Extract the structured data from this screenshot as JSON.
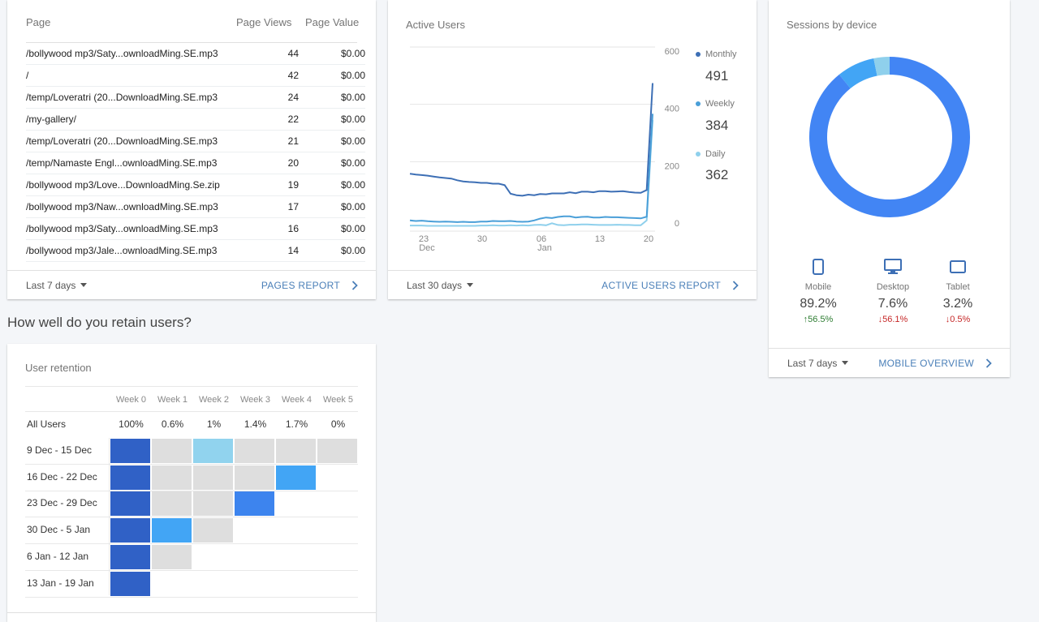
{
  "pages_card": {
    "col_page": "Page",
    "col_views": "Page Views",
    "col_value": "Page Value",
    "rows": [
      {
        "page": "/bollywood mp3/Saty...ownloadMing.SE.mp3",
        "views": "44",
        "value": "$0.00"
      },
      {
        "page": "/",
        "views": "42",
        "value": "$0.00"
      },
      {
        "page": "/temp/Loveratri (20...DownloadMing.SE.mp3",
        "views": "24",
        "value": "$0.00"
      },
      {
        "page": "/my-gallery/",
        "views": "22",
        "value": "$0.00"
      },
      {
        "page": "/temp/Loveratri (20...DownloadMing.SE.mp3",
        "views": "21",
        "value": "$0.00"
      },
      {
        "page": "/temp/Namaste Engl...ownloadMing.SE.mp3",
        "views": "20",
        "value": "$0.00"
      },
      {
        "page": "/bollywood mp3/Love...DownloadMing.Se.zip",
        "views": "19",
        "value": "$0.00"
      },
      {
        "page": "/bollywood mp3/Naw...ownloadMing.SE.mp3",
        "views": "17",
        "value": "$0.00"
      },
      {
        "page": "/bollywood mp3/Saty...ownloadMing.SE.mp3",
        "views": "16",
        "value": "$0.00"
      },
      {
        "page": "/bollywood mp3/Jale...ownloadMing.SE.mp3",
        "views": "14",
        "value": "$0.00"
      }
    ],
    "range": "Last 7 days",
    "link": "PAGES REPORT"
  },
  "active_users_card": {
    "title": "Active Users",
    "range": "Last 30 days",
    "link": "ACTIVE USERS REPORT",
    "legend": [
      {
        "name": "Monthly",
        "value": "491",
        "color": "#3d6fb5"
      },
      {
        "name": "Weekly",
        "value": "384",
        "color": "#4a9fd8"
      },
      {
        "name": "Daily",
        "value": "362",
        "color": "#8fd0ec"
      }
    ]
  },
  "chart_data": {
    "type": "line",
    "title": "Active Users",
    "ylim": [
      0,
      600
    ],
    "yticks": [
      "0",
      "200",
      "400",
      "600"
    ],
    "xtick_labels": [
      {
        "day": "23",
        "month": "Dec"
      },
      {
        "day": "30",
        "month": ""
      },
      {
        "day": "06",
        "month": "Jan"
      },
      {
        "day": "13",
        "month": ""
      },
      {
        "day": "20",
        "month": ""
      }
    ],
    "grid": true,
    "series": [
      {
        "name": "Monthly",
        "color": "#3d6fb5",
        "values": [
          175,
          172,
          170,
          168,
          165,
          162,
          160,
          158,
          152,
          148,
          146,
          145,
          143,
          143,
          140,
          140,
          135,
          105,
          100,
          98,
          102,
          100,
          104,
          103,
          106,
          106,
          106,
          110,
          107,
          112,
          112,
          110,
          114,
          114,
          112,
          113,
          114,
          111,
          109,
          108,
          118,
          491
        ]
      },
      {
        "name": "Weekly",
        "color": "#4a9fd8",
        "values": [
          12,
          10,
          11,
          9,
          8,
          7,
          8,
          7,
          6,
          7,
          6,
          6,
          8,
          8,
          10,
          9,
          9,
          10,
          8,
          7,
          8,
          12,
          18,
          22,
          20,
          24,
          26,
          26,
          22,
          24,
          25,
          22,
          22,
          24,
          23,
          23,
          22,
          21,
          20,
          19,
          25,
          384
        ]
      },
      {
        "name": "Daily",
        "color": "#8fd0ec",
        "values": [
          -6,
          -6,
          -6,
          -7,
          -7,
          -7,
          -7,
          -7,
          -7,
          -7,
          -7,
          -7,
          -6,
          -6,
          -5,
          -6,
          -6,
          -5,
          -6,
          -5,
          -6,
          -4,
          -3,
          -5,
          2,
          -4,
          -5,
          -3,
          -3,
          -2,
          -2,
          -3,
          -4,
          -4,
          -4,
          -3,
          -4,
          -4,
          -5,
          -5,
          12,
          362
        ]
      }
    ]
  },
  "device_card": {
    "title": "Sessions by device",
    "range": "Last 7 days",
    "link": "MOBILE OVERVIEW",
    "devices": [
      {
        "name": "Mobile",
        "value": "89.2%",
        "change": "56.5%",
        "direction": "up",
        "color": "#4285f4"
      },
      {
        "name": "Desktop",
        "value": "7.6%",
        "change": "56.1%",
        "direction": "down",
        "color": "#42a5f5"
      },
      {
        "name": "Tablet",
        "value": "3.2%",
        "change": "0.5%",
        "direction": "down",
        "color": "#8fd0ec"
      }
    ],
    "donut_values": [
      89.2,
      7.6,
      3.2
    ]
  },
  "retention": {
    "heading": "How well do you retain users?",
    "title": "User retention",
    "weeks": [
      "Week 0",
      "Week 1",
      "Week 2",
      "Week 3",
      "Week 4",
      "Week 5"
    ],
    "all_users_label": "All Users",
    "all_users_values": [
      "100%",
      "0.6%",
      "1%",
      "1.4%",
      "1.7%",
      "0%"
    ],
    "cohorts": [
      {
        "label": "9 Dec - 15 Dec",
        "cells": [
          "#3061c6",
          "#dedede",
          "#91d3ee",
          "#dedede",
          "#dedede",
          "#dedede"
        ]
      },
      {
        "label": "16 Dec - 22 Dec",
        "cells": [
          "#3061c6",
          "#dedede",
          "#dedede",
          "#dedede",
          "#42a5f5"
        ]
      },
      {
        "label": "23 Dec - 29 Dec",
        "cells": [
          "#3061c6",
          "#dedede",
          "#dedede",
          "#3d84ee"
        ]
      },
      {
        "label": "30 Dec - 5 Jan",
        "cells": [
          "#3061c6",
          "#42a5f5",
          "#dedede"
        ]
      },
      {
        "label": "6 Jan - 12 Jan",
        "cells": [
          "#3061c6",
          "#dedede"
        ]
      },
      {
        "label": "13 Jan - 19 Jan",
        "cells": [
          "#3061c6"
        ]
      }
    ]
  }
}
